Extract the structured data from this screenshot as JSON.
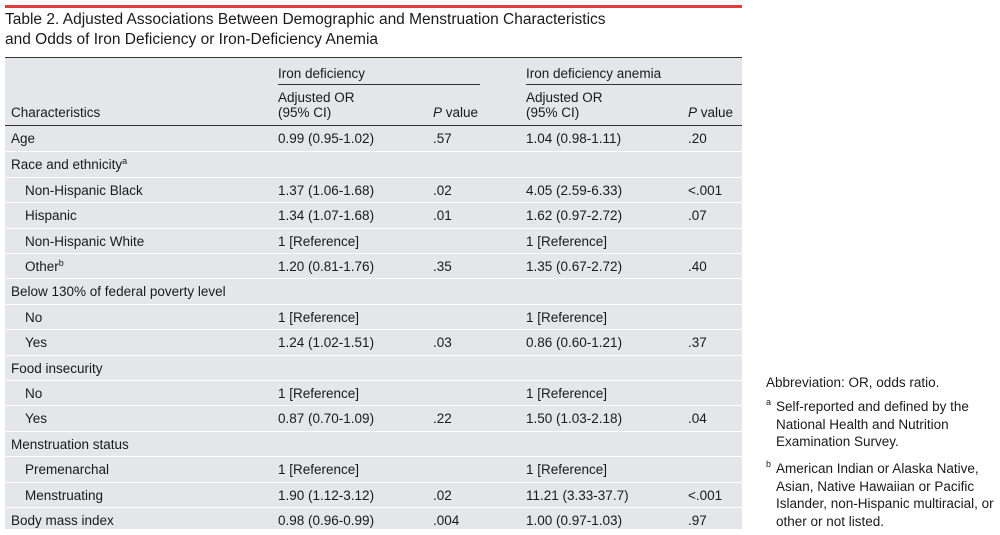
{
  "title_line1": "Table 2. Adjusted Associations Between Demographic and Menstruation Characteristics",
  "title_line2": "and Odds of Iron Deficiency or Iron-Deficiency Anemia",
  "header": {
    "group_iron_deficiency": "Iron deficiency",
    "group_iron_deficiency_anemia": "Iron deficiency anemia",
    "characteristics": "Characteristics",
    "or_line1": "Adjusted OR",
    "or_line2": "(95% CI)",
    "p_italic": "P",
    "p_rest": " value"
  },
  "rows": [
    {
      "label": "Age",
      "sup": "",
      "indent": false,
      "or1": "0.99 (0.95-1.02)",
      "p1": ".57",
      "or2": "1.04 (0.98-1.11)",
      "p2": ".20"
    },
    {
      "label": "Race and ethnicity",
      "sup": "a",
      "indent": false,
      "or1": "",
      "p1": "",
      "or2": "",
      "p2": ""
    },
    {
      "label": "Non-Hispanic Black",
      "sup": "",
      "indent": true,
      "or1": "1.37 (1.06-1.68)",
      "p1": ".02",
      "or2": "4.05 (2.59-6.33)",
      "p2": "<.001"
    },
    {
      "label": "Hispanic",
      "sup": "",
      "indent": true,
      "or1": "1.34 (1.07-1.68)",
      "p1": ".01",
      "or2": "1.62 (0.97-2.72)",
      "p2": ".07"
    },
    {
      "label": "Non-Hispanic White",
      "sup": "",
      "indent": true,
      "or1": "1 [Reference]",
      "p1": "",
      "or2": "1 [Reference]",
      "p2": ""
    },
    {
      "label": "Other",
      "sup": "b",
      "indent": true,
      "or1": "1.20 (0.81-1.76)",
      "p1": ".35",
      "or2": "1.35 (0.67-2.72)",
      "p2": ".40"
    },
    {
      "label": "Below 130% of federal poverty level",
      "sup": "",
      "indent": false,
      "or1": "",
      "p1": "",
      "or2": "",
      "p2": ""
    },
    {
      "label": "No",
      "sup": "",
      "indent": true,
      "or1": "1 [Reference]",
      "p1": "",
      "or2": "1 [Reference]",
      "p2": ""
    },
    {
      "label": "Yes",
      "sup": "",
      "indent": true,
      "or1": "1.24 (1.02-1.51)",
      "p1": ".03",
      "or2": "0.86 (0.60-1.21)",
      "p2": ".37"
    },
    {
      "label": "Food insecurity",
      "sup": "",
      "indent": false,
      "or1": "",
      "p1": "",
      "or2": "",
      "p2": ""
    },
    {
      "label": "No",
      "sup": "",
      "indent": true,
      "or1": "1 [Reference]",
      "p1": "",
      "or2": "1 [Reference]",
      "p2": ""
    },
    {
      "label": "Yes",
      "sup": "",
      "indent": true,
      "or1": "0.87 (0.70-1.09)",
      "p1": ".22",
      "or2": "1.50 (1.03-2.18)",
      "p2": ".04"
    },
    {
      "label": "Menstruation status",
      "sup": "",
      "indent": false,
      "or1": "",
      "p1": "",
      "or2": "",
      "p2": ""
    },
    {
      "label": "Premenarchal",
      "sup": "",
      "indent": true,
      "or1": "1 [Reference]",
      "p1": "",
      "or2": "1 [Reference]",
      "p2": ""
    },
    {
      "label": "Menstruating",
      "sup": "",
      "indent": true,
      "or1": "1.90 (1.12-3.12)",
      "p1": ".02",
      "or2": "11.21 (3.33-37.7)",
      "p2": "<.001"
    },
    {
      "label": "Body mass index",
      "sup": "",
      "indent": false,
      "or1": "0.98 (0.96-0.99)",
      "p1": ".004",
      "or2": "1.00 (0.97-1.03)",
      "p2": ".97"
    }
  ],
  "footnotes": {
    "abbreviation": "Abbreviation: OR, odds ratio.",
    "a_mark": "a",
    "a_text": "Self-reported and defined by the National Health and Nutrition Examination Survey.",
    "b_mark": "b",
    "b_text": "American Indian or Alaska Native, Asian, Native Hawaiian or Pacific Islander, non-Hispanic multiracial, or other or not listed."
  }
}
